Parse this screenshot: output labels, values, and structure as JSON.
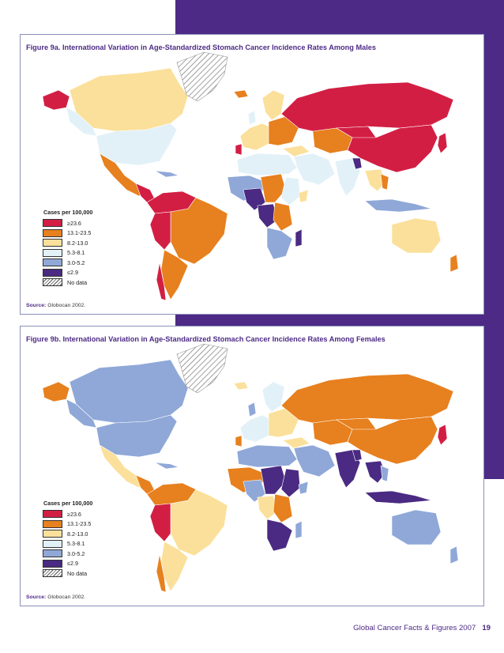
{
  "figures": [
    {
      "title": "Figure 9a. International Variation in Age-Standardized Stomach Cancer Incidence Rates Among Males",
      "legend_title": "Cases per 100,000",
      "source_label": "Source:",
      "source_text": "Globocan 2002."
    },
    {
      "title": "Figure 9b. International Variation in Age-Standardized Stomach Cancer Incidence Rates Among Females",
      "legend_title": "Cases per 100,000",
      "source_label": "Source:",
      "source_text": "Globocan 2002."
    }
  ],
  "legend": [
    {
      "label": "≥23.6",
      "color": "#d31e44",
      "pattern": "solid"
    },
    {
      "label": "13.1-23.5",
      "color": "#e7801e",
      "pattern": "solid"
    },
    {
      "label": "8.2-13.0",
      "color": "#fbe09b",
      "pattern": "solid"
    },
    {
      "label": "5.3-8.1",
      "color": "#e2f1f8",
      "pattern": "solid"
    },
    {
      "label": "3.0-5.2",
      "color": "#8fa8d8",
      "pattern": "solid"
    },
    {
      "label": "≤2.9",
      "color": "#4a2a82",
      "pattern": "solid"
    },
    {
      "label": "No data",
      "color": "#ffffff",
      "pattern": "hatch"
    }
  ],
  "footer": {
    "title": "Global Cancer Facts & Figures 2007",
    "page_number": "19"
  },
  "colors": {
    "brand_purple": "#4d2a86",
    "frame_border": "#8a8fb8"
  }
}
